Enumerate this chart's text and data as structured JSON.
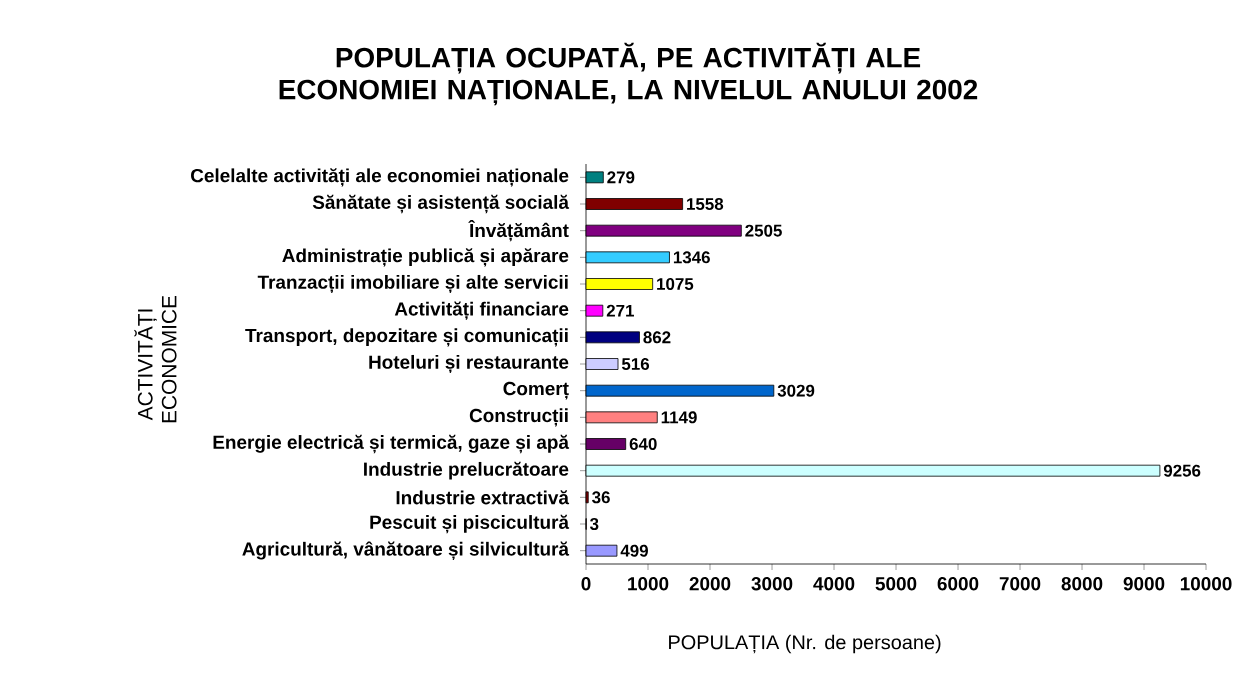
{
  "chart_data": {
    "type": "bar",
    "orientation": "horizontal",
    "title": "POPULAȚIA OCUPATĂ, PE ACTIVITĂȚI ALE ECONOMIEI NAȚIONALE, LA NIVELUL ANULUI 2002",
    "xlabel": "POPULAȚIA (Nr. de persoane)",
    "ylabel": "ACTIVITĂȚI ECONOMICE",
    "categories": [
      "Celelalte activități ale economiei naționale",
      "Sănătate și asistență socială",
      "Învățământ",
      "Administrație publică și apărare",
      "Tranzacții imobiliare și alte servicii",
      "Activități financiare",
      "Transport, depozitare și comunicații",
      "Hoteluri și restaurante",
      "Comerț",
      "Construcții",
      "Energie electrică și termică,  gaze și apă",
      "Industrie prelucrătoare",
      "Industrie extractivă",
      "Pescuit și piscicultură",
      "Agricultură, vânătoare și silvicultură"
    ],
    "values": [
      279,
      1558,
      2505,
      1346,
      1075,
      271,
      862,
      516,
      3029,
      1149,
      640,
      9256,
      36,
      3,
      499
    ],
    "colors": [
      "#008080",
      "#800000",
      "#800080",
      "#33ccff",
      "#ffff00",
      "#ff00ff",
      "#000080",
      "#ccccff",
      "#0066cc",
      "#ff8080",
      "#660066",
      "#ccffff",
      "#800000",
      "#800000",
      "#9999ff"
    ],
    "xlim": [
      0,
      10000
    ],
    "xticks": [
      0,
      1000,
      2000,
      3000,
      4000,
      5000,
      6000,
      7000,
      8000,
      9000,
      10000
    ],
    "data_labels": true
  }
}
